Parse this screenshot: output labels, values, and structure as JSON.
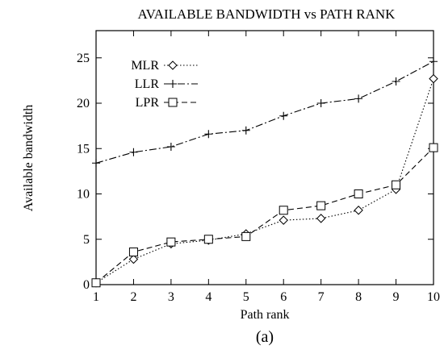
{
  "chart_data": {
    "type": "line",
    "title": "AVAILABLE BANDWIDTH vs PATH RANK",
    "xlabel": "Path rank",
    "ylabel": "Available bandwidth",
    "caption": "(a)",
    "x": [
      1,
      2,
      3,
      4,
      5,
      6,
      7,
      8,
      9,
      10
    ],
    "xlim": [
      1,
      10
    ],
    "ylim": [
      0,
      28
    ],
    "xticks": [
      "1",
      "2",
      "3",
      "4",
      "5",
      "6",
      "7",
      "8",
      "9",
      "10"
    ],
    "yticks": [
      "0",
      "5",
      "10",
      "15",
      "20",
      "25"
    ],
    "grid": false,
    "legend_position": "top-left",
    "series": [
      {
        "name": "MLR",
        "marker": "diamond",
        "dash": "dotted",
        "values": [
          0.2,
          2.8,
          4.5,
          4.9,
          5.6,
          7.1,
          7.3,
          8.2,
          10.5,
          22.7
        ]
      },
      {
        "name": "LLR",
        "marker": "plus",
        "dash": "dashdot",
        "values": [
          13.4,
          14.6,
          15.2,
          16.6,
          17.0,
          18.6,
          20.0,
          20.5,
          22.4,
          24.6
        ]
      },
      {
        "name": "LPR",
        "marker": "square",
        "dash": "dashed",
        "values": [
          0.2,
          3.6,
          4.7,
          5.0,
          5.3,
          8.2,
          8.7,
          10.0,
          11.0,
          15.1
        ]
      }
    ]
  }
}
